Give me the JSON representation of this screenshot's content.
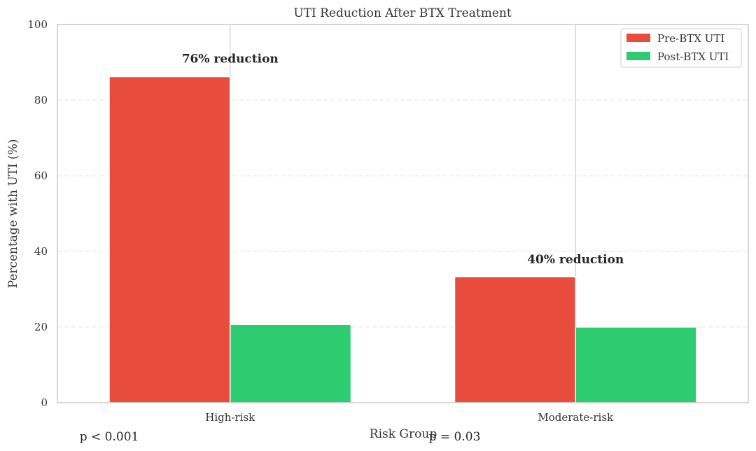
{
  "chart_data": {
    "type": "bar",
    "title": "UTI Reduction After BTX Treatment",
    "xlabel": "Risk Group",
    "ylabel": "Percentage with UTI (%)",
    "categories": [
      "High-risk",
      "Moderate-risk"
    ],
    "series": [
      {
        "name": "Pre-BTX UTI",
        "values": [
          86.2,
          33.3
        ],
        "color": "#e74c3c"
      },
      {
        "name": "Post-BTX UTI",
        "values": [
          20.7,
          20.0
        ],
        "color": "#2ecc71"
      }
    ],
    "ylim": [
      0,
      100
    ],
    "yticks": [
      0,
      20,
      40,
      60,
      80,
      100
    ],
    "grid": true,
    "legend_position": "top-right",
    "annotations": [
      {
        "category": "High-risk",
        "text": "76% reduction",
        "y": 91
      },
      {
        "category": "Moderate-risk",
        "text": "40% reduction",
        "y": 38
      }
    ],
    "p_values": [
      {
        "category": "High-risk",
        "text": "p < 0.001"
      },
      {
        "category": "Moderate-risk",
        "text": "p = 0.03"
      }
    ]
  }
}
